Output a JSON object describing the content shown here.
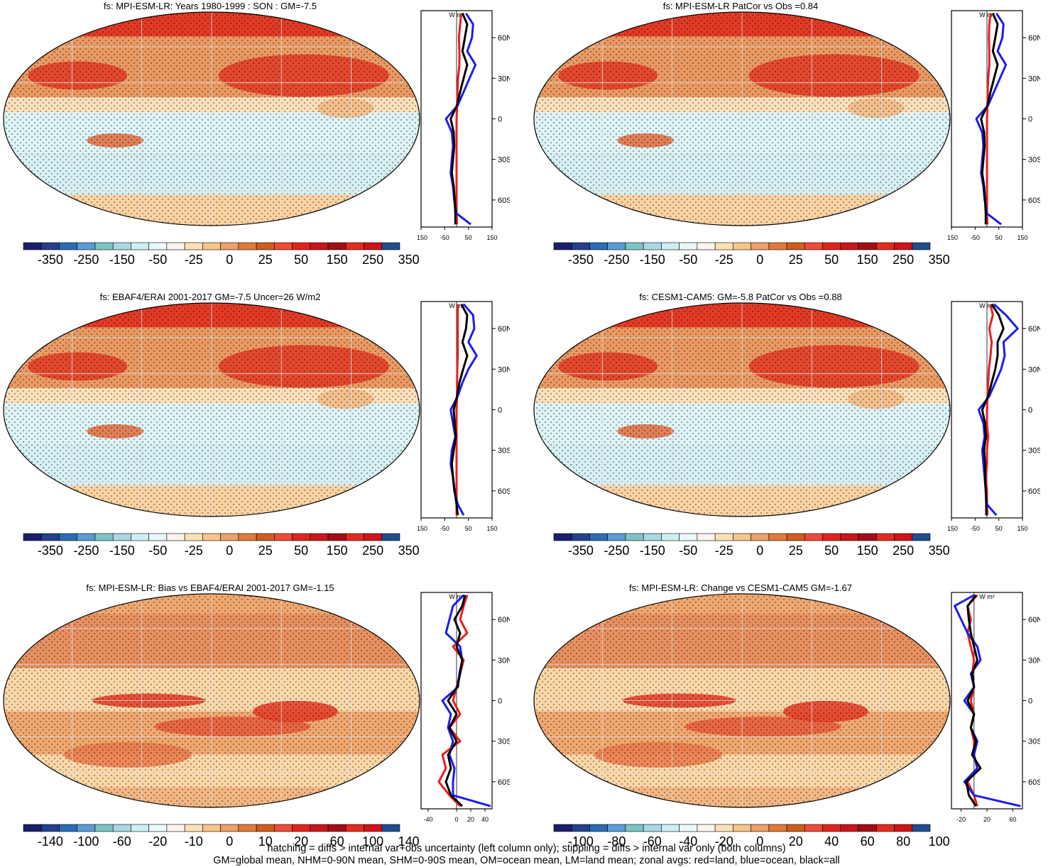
{
  "chart_data": [
    {
      "type": "heatmap",
      "title": "fs: MPI-ESM-LR: Years 1980-1999 : SON : GM=-7.5",
      "colorbar_labels": [
        "-350",
        "-250",
        "-150",
        "-50",
        "-25",
        "0",
        "25",
        "50",
        "150",
        "250",
        "350"
      ],
      "zonal": {
        "units": "W m²",
        "xticks": [
          "-150",
          "-50",
          "50",
          "150"
        ],
        "xlim": [
          -150,
          150
        ],
        "ylim": [
          -80,
          80
        ],
        "yticks": [
          "60N",
          "30N",
          "0",
          "30S",
          "60S"
        ],
        "series": [
          {
            "color": "#ee1c1c",
            "lat": [
              78,
              70,
              60,
              50,
              40,
              30,
              20,
              10,
              0,
              -10,
              -20,
              -30,
              -40,
              -50,
              -60,
              -70,
              -78
            ],
            "values": [
              20,
              15,
              10,
              12,
              12,
              6,
              4,
              2,
              0,
              0,
              0,
              0,
              0,
              0,
              0,
              0,
              2
            ]
          },
          {
            "color": "#1c1cee",
            "lat": [
              78,
              70,
              60,
              50,
              40,
              30,
              20,
              10,
              0,
              -10,
              -20,
              -30,
              -40,
              -50,
              -60,
              -70,
              -78
            ],
            "values": [
              40,
              70,
              65,
              45,
              80,
              55,
              30,
              5,
              -45,
              -20,
              -15,
              -20,
              -25,
              -15,
              -10,
              0,
              60
            ]
          },
          {
            "color": "#000000",
            "lat": [
              78,
              70,
              60,
              50,
              40,
              30,
              20,
              10,
              0,
              -10,
              -20,
              -30,
              -40,
              -50,
              -60,
              -70,
              -78
            ],
            "values": [
              25,
              45,
              35,
              25,
              45,
              30,
              15,
              2,
              -25,
              -12,
              -10,
              -15,
              -20,
              -12,
              -8,
              -5,
              -5
            ]
          }
        ]
      }
    },
    {
      "type": "heatmap",
      "title": "fs: MPI-ESM-LR PatCor vs Obs =0.84",
      "colorbar_labels": [
        "-350",
        "-250",
        "-150",
        "-50",
        "-25",
        "0",
        "25",
        "50",
        "150",
        "250",
        "350"
      ],
      "zonal": {
        "units": "W m²",
        "xticks": [
          "-150",
          "-50",
          "50",
          "150"
        ],
        "xlim": [
          -150,
          150
        ],
        "ylim": [
          -80,
          80
        ],
        "yticks": [
          "60N",
          "30N",
          "0",
          "30S",
          "60S"
        ],
        "series": [
          {
            "color": "#ee1c1c",
            "lat": [
              78,
              70,
              60,
              50,
              40,
              30,
              20,
              10,
              0,
              -10,
              -20,
              -30,
              -40,
              -50,
              -60,
              -70,
              -78
            ],
            "values": [
              15,
              10,
              8,
              10,
              10,
              5,
              3,
              2,
              0,
              0,
              0,
              0,
              0,
              0,
              0,
              0,
              2
            ]
          },
          {
            "color": "#1c1cee",
            "lat": [
              78,
              70,
              60,
              50,
              40,
              30,
              20,
              10,
              0,
              -10,
              -20,
              -30,
              -40,
              -50,
              -60,
              -70,
              -78
            ],
            "values": [
              40,
              70,
              65,
              45,
              80,
              55,
              30,
              5,
              -45,
              -20,
              -15,
              -20,
              -25,
              -15,
              -10,
              0,
              60
            ]
          },
          {
            "color": "#000000",
            "lat": [
              78,
              70,
              60,
              50,
              40,
              30,
              20,
              10,
              0,
              -10,
              -20,
              -30,
              -40,
              -50,
              -60,
              -70,
              -78
            ],
            "values": [
              25,
              45,
              35,
              25,
              45,
              30,
              15,
              2,
              -25,
              -12,
              -10,
              -15,
              -20,
              -12,
              -8,
              -5,
              -5
            ]
          }
        ]
      }
    },
    {
      "type": "heatmap",
      "title": "fs: EBAF4/ERAI 2001-2017 GM=-7.5 Uncer=26 W/m2",
      "colorbar_labels": [
        "-350",
        "-250",
        "-150",
        "-50",
        "-25",
        "0",
        "25",
        "50",
        "150",
        "250",
        "350"
      ],
      "zonal": {
        "units": "W m²",
        "xticks": [
          "-150",
          "-50",
          "50",
          "150"
        ],
        "xlim": [
          -150,
          150
        ],
        "ylim": [
          -80,
          80
        ],
        "yticks": [
          "60N",
          "30N",
          "0",
          "30S",
          "60S"
        ],
        "series": [
          {
            "color": "#ee1c1c",
            "lat": [
              78,
              70,
              60,
              50,
              40,
              30,
              20,
              10,
              0,
              -10,
              -20,
              -30,
              -40,
              -50,
              -60,
              -70,
              -78
            ],
            "values": [
              5,
              5,
              5,
              5,
              5,
              3,
              2,
              2,
              0,
              0,
              0,
              0,
              0,
              0,
              0,
              0,
              0
            ]
          },
          {
            "color": "#1c1cee",
            "lat": [
              78,
              70,
              60,
              50,
              40,
              30,
              20,
              10,
              0,
              -10,
              -20,
              -30,
              -40,
              -50,
              -60,
              -70,
              -78
            ],
            "values": [
              30,
              70,
              75,
              50,
              85,
              50,
              25,
              5,
              -25,
              -15,
              -5,
              -20,
              -25,
              -15,
              -10,
              5,
              30
            ]
          },
          {
            "color": "#000000",
            "lat": [
              78,
              70,
              60,
              50,
              40,
              30,
              20,
              10,
              0,
              -10,
              -20,
              -30,
              -40,
              -50,
              -60,
              -70,
              -78
            ],
            "values": [
              20,
              45,
              40,
              25,
              45,
              28,
              12,
              2,
              -12,
              -8,
              -3,
              -12,
              -20,
              -15,
              -8,
              0,
              5
            ]
          }
        ]
      }
    },
    {
      "type": "heatmap",
      "title": "fs: CESM1-CAM5: GM=-5.8 PatCor vs Obs =0.88",
      "colorbar_labels": [
        "-350",
        "-250",
        "-150",
        "-50",
        "-25",
        "0",
        "25",
        "50",
        "150",
        "250",
        "350"
      ],
      "zonal": {
        "units": "W m²",
        "xticks": [
          "-150",
          "-50",
          "50",
          "150"
        ],
        "xlim": [
          -150,
          150
        ],
        "ylim": [
          -80,
          80
        ],
        "yticks": [
          "60N",
          "30N",
          "0",
          "30S",
          "60S"
        ],
        "series": [
          {
            "color": "#ee1c1c",
            "lat": [
              78,
              70,
              60,
              50,
              40,
              30,
              20,
              10,
              0,
              -10,
              -20,
              -30,
              -40,
              -50,
              -60,
              -70,
              -78
            ],
            "values": [
              15,
              25,
              10,
              20,
              15,
              8,
              5,
              2,
              0,
              0,
              5,
              0,
              0,
              -5,
              0,
              0,
              2
            ]
          },
          {
            "color": "#1c1cee",
            "lat": [
              78,
              70,
              60,
              50,
              40,
              30,
              20,
              10,
              0,
              -10,
              -20,
              -30,
              -40,
              -50,
              -60,
              -70,
              -78
            ],
            "values": [
              30,
              80,
              130,
              70,
              75,
              60,
              35,
              10,
              -35,
              -15,
              -10,
              -20,
              -15,
              -10,
              -5,
              0,
              40
            ]
          },
          {
            "color": "#000000",
            "lat": [
              78,
              70,
              60,
              50,
              40,
              30,
              20,
              10,
              0,
              -10,
              -20,
              -30,
              -40,
              -50,
              -60,
              -70,
              -78
            ],
            "values": [
              20,
              50,
              70,
              45,
              45,
              35,
              20,
              5,
              -20,
              -8,
              -5,
              -12,
              -8,
              -8,
              -5,
              -3,
              -3
            ]
          }
        ]
      }
    },
    {
      "type": "heatmap",
      "title": "fs: MPI-ESM-LR: Bias vs EBAF4/ERAI 2001-2017  GM=-1.15",
      "colorbar_labels": [
        "-140",
        "-100",
        "-60",
        "-20",
        "-10",
        "0",
        "10",
        "20",
        "60",
        "100",
        "140"
      ],
      "zonal": {
        "units": "W m²",
        "xticks": [
          "-40",
          "0",
          "20",
          "40"
        ],
        "xlim": [
          -50,
          50
        ],
        "ylim": [
          -80,
          80
        ],
        "yticks": [
          "60N",
          "30N",
          "0",
          "30S",
          "60S"
        ],
        "series": [
          {
            "color": "#ee1c1c",
            "lat": [
              78,
              70,
              60,
              50,
              40,
              30,
              20,
              10,
              0,
              -10,
              -20,
              -30,
              -40,
              -50,
              -60,
              -70,
              -78
            ],
            "values": [
              15,
              10,
              5,
              15,
              -5,
              10,
              5,
              0,
              -5,
              5,
              -10,
              5,
              -20,
              -15,
              -25,
              -10,
              5
            ]
          },
          {
            "color": "#1c1cee",
            "lat": [
              78,
              70,
              60,
              50,
              40,
              30,
              20,
              10,
              0,
              -10,
              -20,
              -30,
              -40,
              -50,
              -60,
              -70,
              -78
            ],
            "values": [
              10,
              -5,
              -10,
              -15,
              5,
              8,
              4,
              2,
              -20,
              -8,
              -12,
              -5,
              -10,
              -3,
              -5,
              -5,
              48
            ]
          },
          {
            "color": "#000000",
            "lat": [
              78,
              70,
              60,
              50,
              40,
              30,
              20,
              10,
              0,
              -10,
              -20,
              -30,
              -40,
              -50,
              -60,
              -70,
              -78
            ],
            "values": [
              12,
              8,
              -3,
              5,
              0,
              8,
              5,
              1,
              -12,
              0,
              -10,
              0,
              -12,
              -8,
              -15,
              -8,
              8
            ]
          }
        ]
      }
    },
    {
      "type": "heatmap",
      "title": "fs: MPI-ESM-LR: Change vs CESM1-CAM5 GM=-1.67",
      "colorbar_labels": [
        "-100",
        "-80",
        "-60",
        "-40",
        "-20",
        "0",
        "20",
        "40",
        "60",
        "80",
        "100"
      ],
      "zonal": {
        "units": "W m²",
        "xticks": [
          "-20",
          "20",
          "60"
        ],
        "xlim": [
          -35,
          75
        ],
        "ylim": [
          -80,
          80
        ],
        "yticks": [
          "60N",
          "30N",
          "0",
          "30S",
          "60S"
        ],
        "series": [
          {
            "color": "#ee1c1c",
            "lat": [
              78,
              70,
              60,
              50,
              40,
              30,
              20,
              10,
              0,
              -10,
              -20,
              -30,
              -40,
              -50,
              -60,
              -70,
              -78
            ],
            "values": [
              5,
              -10,
              -5,
              -10,
              -5,
              0,
              -3,
              0,
              -5,
              0,
              -5,
              0,
              0,
              5,
              -10,
              0,
              5
            ]
          },
          {
            "color": "#1c1cee",
            "lat": [
              78,
              70,
              60,
              50,
              40,
              30,
              20,
              10,
              0,
              -10,
              -20,
              -30,
              -40,
              -50,
              -60,
              -70,
              -78
            ],
            "values": [
              0,
              -30,
              -20,
              -10,
              5,
              10,
              -5,
              0,
              -15,
              0,
              -5,
              5,
              0,
              5,
              -15,
              0,
              72
            ]
          },
          {
            "color": "#000000",
            "lat": [
              78,
              70,
              60,
              50,
              40,
              30,
              20,
              10,
              0,
              -10,
              -20,
              -30,
              -40,
              -50,
              -60,
              -70,
              -78
            ],
            "values": [
              3,
              -10,
              -8,
              -5,
              0,
              5,
              -3,
              0,
              -10,
              0,
              -5,
              3,
              -3,
              10,
              -12,
              -8,
              3
            ]
          }
        ]
      }
    }
  ],
  "footer": {
    "line1": "hatching = diffs > internal var+obs uncertainty (left column only); stippling = diffs > internal var only (both columns)",
    "line2": "GM=global mean, NHM=0-90N mean, SHM=0-90S mean, OM=ocean mean, LM=land mean; zonal avgs: red=land, blue=ocean, black=all"
  },
  "colors": {
    "colorbar": [
      "#1b1f6b",
      "#24418f",
      "#2b6cb5",
      "#5b9bd6",
      "#7fc4c4",
      "#a9d8e4",
      "#cdeff3",
      "#eaf8fa",
      "#fbf3ee",
      "#fde1b6",
      "#f7c48a",
      "#eca06a",
      "#e07a3c",
      "#cf5d1c",
      "#ef4a3a",
      "#e3221e",
      "#c8161b",
      "#a30e16",
      "#e62a1f",
      "#d11218",
      "#204d8f"
    ]
  }
}
